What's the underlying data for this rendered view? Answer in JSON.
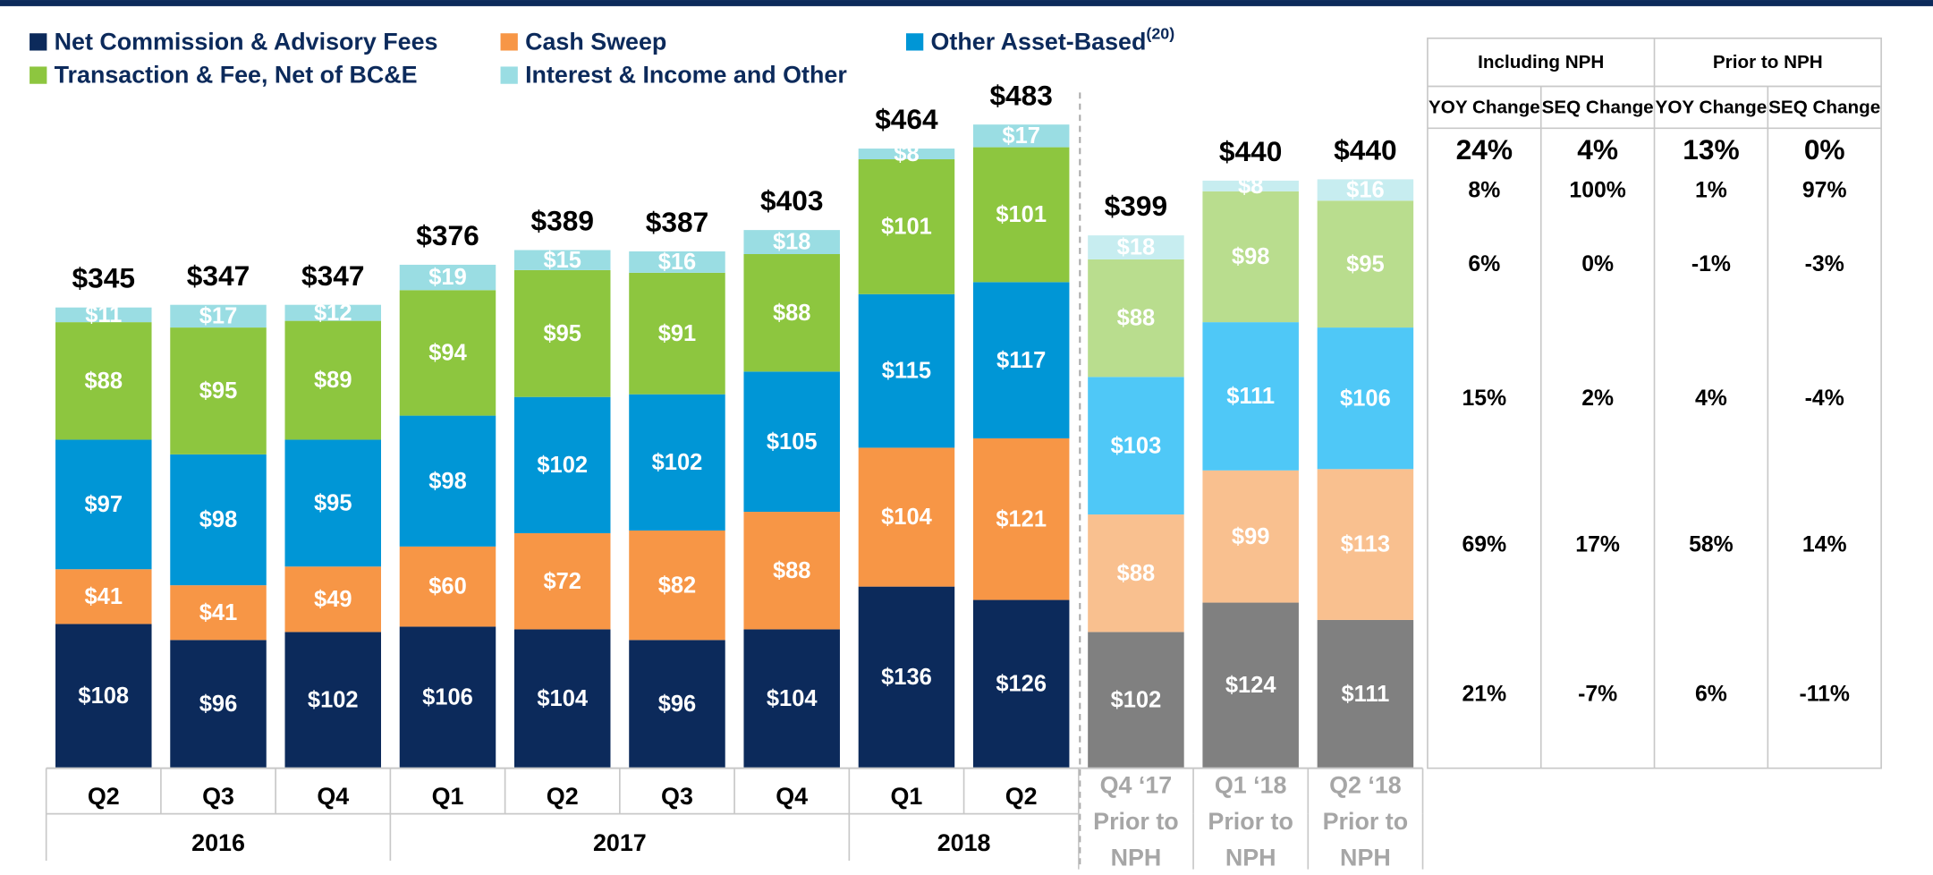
{
  "chart_data": {
    "type": "stacked_bar",
    "categories": [
      [
        "Q2"
      ],
      [
        "Q3"
      ],
      [
        "Q4"
      ],
      [
        "Q1"
      ],
      [
        "Q2"
      ],
      [
        "Q3"
      ],
      [
        "Q4"
      ],
      [
        "Q1"
      ],
      [
        "Q2"
      ],
      [
        "Q4 ‘17",
        "Prior to",
        "NPH"
      ],
      [
        "Q1 ‘18",
        "Prior to",
        "NPH"
      ],
      [
        "Q2 ‘18",
        "Prior to",
        "NPH"
      ]
    ],
    "year_groups": [
      {
        "label": "2016",
        "count": 3
      },
      {
        "label": "2017",
        "count": 4
      },
      {
        "label": "2018",
        "count": 2
      }
    ],
    "series": [
      {
        "name": "Net Commission & Advisory Fees",
        "color": "#0c2a5b",
        "prior_color": "#808080",
        "values": [
          108,
          96,
          102,
          106,
          104,
          96,
          104,
          136,
          126,
          102,
          124,
          111
        ],
        "value_labels": [
          "$108",
          "$96",
          "$102",
          "$106",
          "$104",
          "$96",
          "$104",
          "$136",
          "$126",
          "$102",
          "$124",
          "$111"
        ]
      },
      {
        "name": "Cash Sweep",
        "color": "#f79646",
        "prior_color": "#f9c08f",
        "values": [
          41,
          41,
          49,
          60,
          72,
          82,
          88,
          104,
          121,
          88,
          99,
          113
        ],
        "value_labels": [
          "$41",
          "$41",
          "$49",
          "$60",
          "$72",
          "$82",
          "$88",
          "$104",
          "$121",
          "$88",
          "$99",
          "$113"
        ]
      },
      {
        "name": "Other Asset-Based",
        "footnote": "(20)",
        "color": "#0096d6",
        "prior_color": "#4fc8f7",
        "values": [
          97,
          98,
          95,
          98,
          102,
          102,
          105,
          115,
          117,
          103,
          111,
          106
        ],
        "value_labels": [
          "$97",
          "$98",
          "$95",
          "$98",
          "$102",
          "$102",
          "$105",
          "$115",
          "$117",
          "$103",
          "$111",
          "$106"
        ]
      },
      {
        "name": "Transaction & Fee, Net of BC&E",
        "color": "#8dc63f",
        "prior_color": "#b9dd8e",
        "values": [
          88,
          95,
          89,
          94,
          95,
          91,
          88,
          101,
          101,
          88,
          98,
          95
        ],
        "value_labels": [
          "$88",
          "$95",
          "$89",
          "$94",
          "$95",
          "$91",
          "$88",
          "$101",
          "$101",
          "$88",
          "$98",
          "$95"
        ]
      },
      {
        "name": "Interest & Income and Other",
        "color": "#9adde3",
        "prior_color": "#c7edf0",
        "values": [
          11,
          17,
          12,
          19,
          15,
          16,
          18,
          8,
          17,
          18,
          8,
          16
        ],
        "value_labels": [
          "$11",
          "$17",
          "$12",
          "$19",
          "$15",
          "$16",
          "$18",
          "$8",
          "$17",
          "$18",
          "$8",
          "$16"
        ]
      }
    ],
    "totals": [
      345,
      347,
      347,
      376,
      389,
      387,
      403,
      464,
      483,
      399,
      440,
      440
    ],
    "total_labels": [
      "$345",
      "$347",
      "$347",
      "$376",
      "$389",
      "$387",
      "$403",
      "$464",
      "$483",
      "$399",
      "$440",
      "$440"
    ]
  },
  "table": {
    "groups": [
      "Including NPH",
      "Prior to NPH"
    ],
    "columns": [
      "YOY Change",
      "SEQ Change",
      "YOY Change",
      "SEQ Change"
    ],
    "total_row": [
      "24%",
      "4%",
      "13%",
      "0%"
    ],
    "series_rows": [
      [
        "21%",
        "-7%",
        "6%",
        "-11%"
      ],
      [
        "69%",
        "17%",
        "58%",
        "14%"
      ],
      [
        "15%",
        "2%",
        "4%",
        "-4%"
      ],
      [
        "6%",
        "0%",
        "-1%",
        "-3%"
      ],
      [
        "8%",
        "100%",
        "1%",
        "97%"
      ]
    ]
  }
}
